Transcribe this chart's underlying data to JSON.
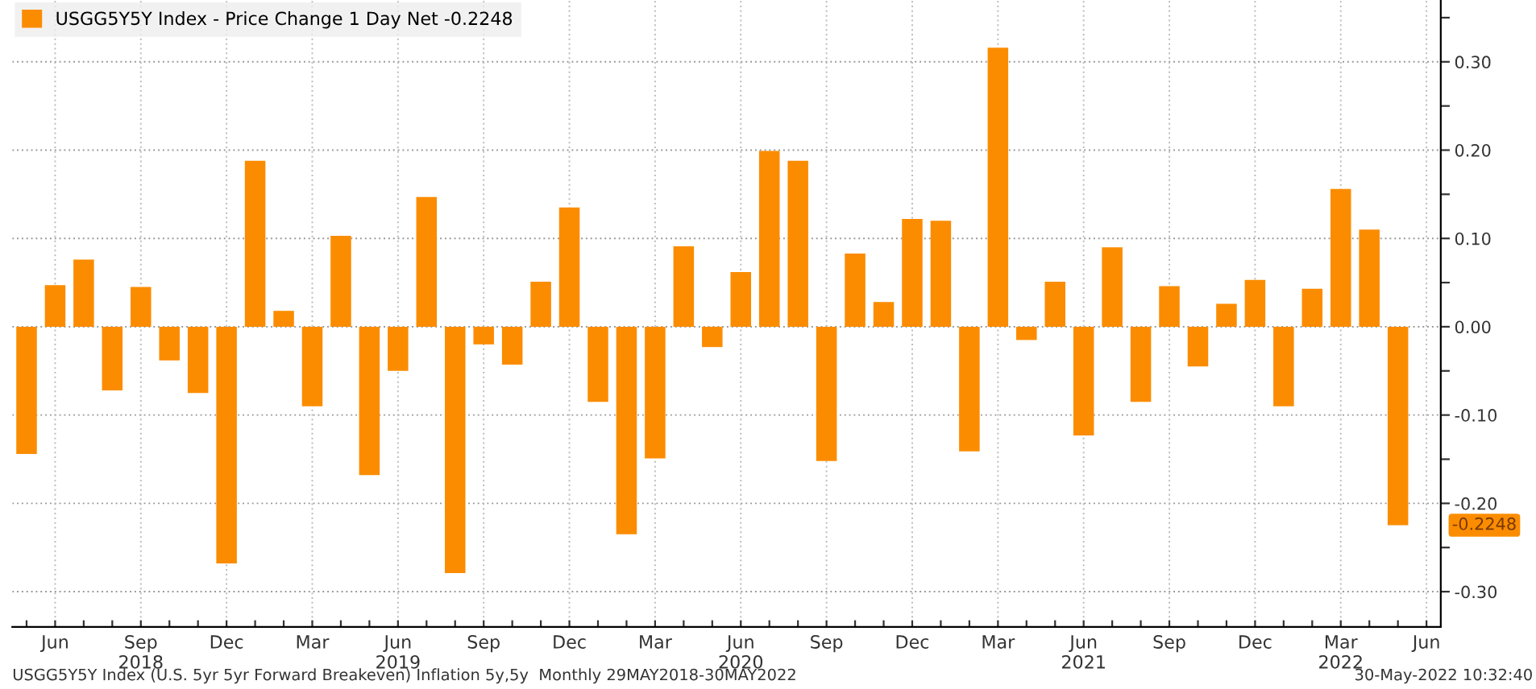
{
  "chart_data": {
    "type": "bar",
    "categories": [
      null,
      "Jun",
      null,
      null,
      "Sep\n2018",
      null,
      null,
      "Dec",
      null,
      null,
      "Mar",
      null,
      null,
      "Jun\n2019",
      null,
      null,
      "Sep",
      null,
      null,
      "Dec",
      null,
      null,
      "Mar",
      null,
      null,
      "Jun\n2020",
      null,
      null,
      "Sep",
      null,
      null,
      "Dec",
      null,
      null,
      "Mar",
      null,
      null,
      "Jun\n2021",
      null,
      null,
      "Sep",
      null,
      null,
      "Dec",
      null,
      null,
      "Mar\n2022",
      null,
      null,
      "Jun"
    ],
    "series": [
      {
        "name": "USGG5Y5Y Index - Price Change 1 Day Net -0.2248",
        "color": "#fb8c00",
        "values": [
          -0.144,
          0.047,
          0.076,
          -0.072,
          0.045,
          -0.038,
          -0.075,
          -0.268,
          0.188,
          0.018,
          -0.09,
          0.103,
          -0.168,
          -0.05,
          0.147,
          -0.279,
          -0.02,
          -0.043,
          0.051,
          0.135,
          -0.085,
          -0.235,
          -0.149,
          0.091,
          -0.023,
          0.062,
          0.199,
          0.188,
          -0.152,
          0.083,
          0.028,
          0.122,
          0.12,
          -0.141,
          0.316,
          -0.015,
          0.051,
          -0.123,
          0.09,
          -0.085,
          0.046,
          -0.045,
          0.026,
          0.053,
          -0.09,
          0.043,
          0.156,
          0.11,
          -0.2248,
          null
        ]
      }
    ],
    "ylim": [
      -0.34,
      0.37
    ],
    "yticks": [
      {
        "value": -0.3,
        "label": "-0.30"
      },
      {
        "value": -0.25,
        "label": null
      },
      {
        "value": -0.2,
        "label": "-0.20"
      },
      {
        "value": -0.15,
        "label": null
      },
      {
        "value": -0.1,
        "label": "-0.10"
      },
      {
        "value": -0.05,
        "label": null
      },
      {
        "value": 0,
        "label": "0.00"
      },
      {
        "value": 0.05,
        "label": null
      },
      {
        "value": 0.1,
        "label": "0.10"
      },
      {
        "value": 0.15,
        "label": null
      },
      {
        "value": 0.2,
        "label": "0.20"
      },
      {
        "value": 0.25,
        "label": null
      },
      {
        "value": 0.3,
        "label": "0.30"
      },
      {
        "value": 0.35,
        "label": null
      }
    ],
    "grid": true,
    "legend": "top left",
    "annotations": [
      "-0.2248",
      "USGG5Y5Y Index (U.S. 5yr 5yr Forward Breakeven) Inflation 5y,5y  Monthly 29MAY2018-30MAY2022",
      "30-May-2022 10:32:40"
    ]
  }
}
